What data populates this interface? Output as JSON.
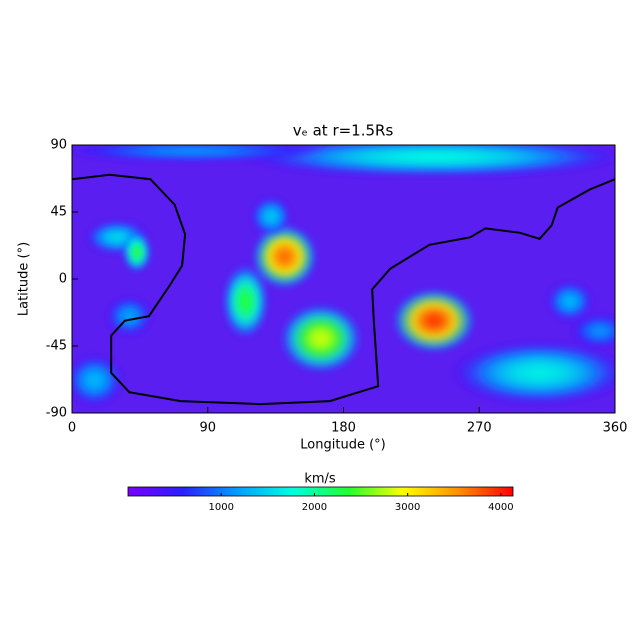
{
  "chart_data": {
    "type": "heatmap",
    "title": "vₑ at r=1.5Rs",
    "x_label": "Longitude (°)",
    "y_label": "Latitude (°)",
    "xlim": [
      0,
      360
    ],
    "xticks": [
      0,
      90,
      180,
      270,
      360
    ],
    "ylim": [
      -90,
      90
    ],
    "yticks": [
      -90,
      -45,
      0,
      45,
      90
    ],
    "plot_background": "#5a1ef0",
    "colormap": [
      "#7a00ff",
      "#2a20ff",
      "#00a0ff",
      "#00ffe0",
      "#20ff30",
      "#ffff00",
      "#ff9000",
      "#ff0000"
    ],
    "clim": [
      0,
      4130
    ],
    "colorbar_label": "km/s",
    "colorbar_ticks": [
      1000,
      2000,
      3000,
      4000
    ],
    "features": [
      {
        "lon": 240,
        "lat": 82,
        "dlon": 130,
        "dlat": 14,
        "value": 1700
      },
      {
        "lon": 80,
        "lat": 86,
        "dlon": 90,
        "dlat": 8,
        "value": 1100
      },
      {
        "lon": 310,
        "lat": -63,
        "dlon": 60,
        "dlat": 22,
        "value": 1650
      },
      {
        "lon": 15,
        "lat": -68,
        "dlon": 20,
        "dlat": 18,
        "value": 1300
      },
      {
        "lon": 30,
        "lat": 28,
        "dlon": 22,
        "dlat": 12,
        "value": 1500
      },
      {
        "lon": 43,
        "lat": 18,
        "dlon": 10,
        "dlat": 14,
        "value": 2300
      },
      {
        "lon": 38,
        "lat": -25,
        "dlon": 16,
        "dlat": 14,
        "value": 1200
      },
      {
        "lon": 141,
        "lat": 15,
        "dlon": 22,
        "dlat": 22,
        "value": 3700
      },
      {
        "lon": 132,
        "lat": 42,
        "dlon": 14,
        "dlat": 14,
        "value": 1400
      },
      {
        "lon": 115,
        "lat": -15,
        "dlon": 16,
        "dlat": 26,
        "value": 2300
      },
      {
        "lon": 165,
        "lat": -40,
        "dlon": 28,
        "dlat": 24,
        "value": 2800
      },
      {
        "lon": 240,
        "lat": -28,
        "dlon": 28,
        "dlat": 22,
        "value": 3900
      },
      {
        "lon": 330,
        "lat": -15,
        "dlon": 16,
        "dlat": 14,
        "value": 1300
      },
      {
        "lon": 350,
        "lat": -35,
        "dlon": 20,
        "dlat": 12,
        "value": 1100
      }
    ],
    "boundary": {
      "lon": [
        0,
        25,
        52,
        68,
        75,
        73,
        65,
        51,
        35,
        26,
        26,
        38,
        72,
        125,
        171,
        203,
        200,
        199,
        211,
        237,
        264,
        274,
        297,
        310,
        318,
        322,
        343,
        360
      ],
      "lat": [
        67,
        70,
        67,
        50,
        30,
        9,
        -4,
        -25,
        -28,
        -38,
        -63,
        -76,
        -82,
        -84,
        -82,
        -72,
        -27,
        -7,
        7,
        23,
        28,
        34,
        31,
        27,
        36,
        48,
        60,
        67
      ]
    }
  }
}
